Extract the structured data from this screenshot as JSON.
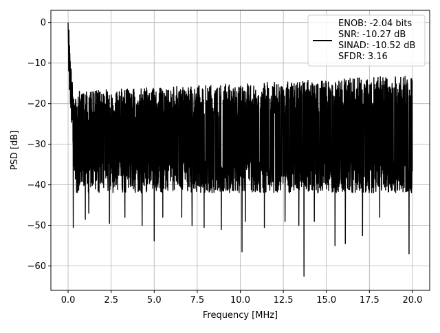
{
  "chart_data": {
    "type": "line",
    "title": "",
    "xlabel": "Frequency [MHz]",
    "ylabel": "PSD [dB]",
    "xlim": [
      -1.0,
      21.0
    ],
    "ylim": [
      -66,
      3
    ],
    "xticks": [
      0.0,
      2.5,
      5.0,
      7.5,
      10.0,
      12.5,
      15.0,
      17.5,
      20.0
    ],
    "xtick_labels": [
      "0.0",
      "2.5",
      "5.0",
      "7.5",
      "10.0",
      "12.5",
      "15.0",
      "17.5",
      "20.0"
    ],
    "yticks": [
      0,
      -10,
      -20,
      -30,
      -40,
      -50,
      -60
    ],
    "ytick_labels": [
      "0",
      "−10",
      "−20",
      "−30",
      "−40",
      "−50",
      "−60"
    ],
    "grid": true,
    "legend_position": "top-right",
    "series": [
      {
        "name": "",
        "color": "#000000",
        "x_start": 0.0,
        "x_end": 20.0,
        "peak_db": 0.0,
        "noise_floor_mean_db": -30,
        "noise_upper_db": -17,
        "noise_lower_db": -45,
        "min_spikes": [
          {
            "x": 0.3,
            "y": -50.5
          },
          {
            "x": 1.0,
            "y": -48.5
          },
          {
            "x": 1.2,
            "y": -47.0
          },
          {
            "x": 2.4,
            "y": -49.5
          },
          {
            "x": 3.3,
            "y": -48.0
          },
          {
            "x": 4.3,
            "y": -50.0
          },
          {
            "x": 5.0,
            "y": -53.8
          },
          {
            "x": 5.5,
            "y": -48.0
          },
          {
            "x": 6.6,
            "y": -48.0
          },
          {
            "x": 7.2,
            "y": -50.0
          },
          {
            "x": 7.9,
            "y": -50.5
          },
          {
            "x": 8.9,
            "y": -51.0
          },
          {
            "x": 10.1,
            "y": -56.5
          },
          {
            "x": 10.3,
            "y": -49.0
          },
          {
            "x": 11.4,
            "y": -50.5
          },
          {
            "x": 12.6,
            "y": -49.0
          },
          {
            "x": 13.4,
            "y": -50.0
          },
          {
            "x": 13.7,
            "y": -62.5
          },
          {
            "x": 14.3,
            "y": -49.0
          },
          {
            "x": 15.5,
            "y": -55.0
          },
          {
            "x": 16.1,
            "y": -54.5
          },
          {
            "x": 17.1,
            "y": -52.5
          },
          {
            "x": 18.1,
            "y": -48.0
          },
          {
            "x": 19.8,
            "y": -57.0
          }
        ]
      }
    ],
    "legend_lines": [
      "ENOB: -2.04 bits",
      "SNR: -10.27 dB",
      "SINAD: -10.52 dB",
      "SFDR: 3.16"
    ]
  }
}
